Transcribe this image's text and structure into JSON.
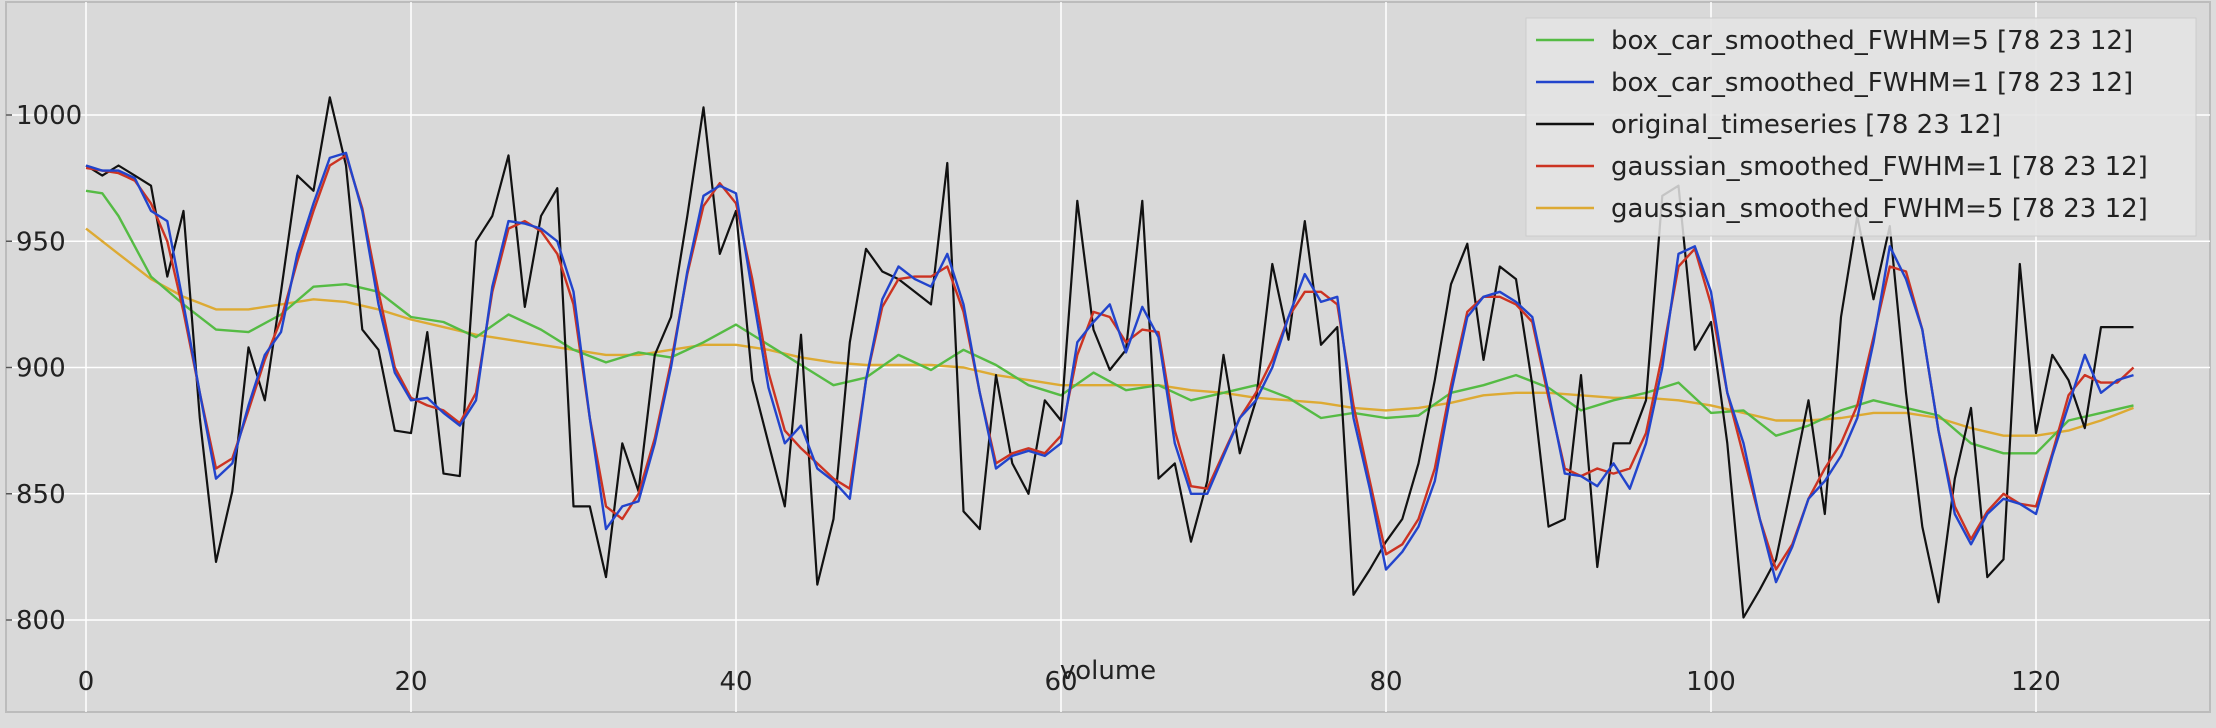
{
  "chart_data": {
    "type": "line",
    "title": "",
    "xlabel": "volume",
    "ylabel": "",
    "xlim": [
      -0.5,
      128.5
    ],
    "ylim": [
      780,
      1050
    ],
    "xticks": [
      0,
      20,
      40,
      60,
      80,
      100,
      120
    ],
    "yticks": [
      800,
      850,
      900,
      950,
      1000
    ],
    "xtick_labels": [
      "0",
      "20",
      "40",
      "60",
      "80",
      "100",
      "120"
    ],
    "ytick_labels": [
      "800",
      "850",
      "900",
      "950",
      "1000"
    ],
    "grid": true,
    "legend_position": "top-right",
    "background": "#d9d9d9",
    "series": [
      {
        "name": "box_car_smoothed_FWHM=5 [78 23 12]",
        "color": "#55bb44",
        "x": [
          0,
          1,
          2,
          4,
          6,
          8,
          10,
          12,
          14,
          16,
          18,
          20,
          22,
          24,
          26,
          28,
          30,
          32,
          34,
          36,
          38,
          40,
          42,
          44,
          46,
          48,
          50,
          52,
          54,
          56,
          58,
          60,
          62,
          64,
          66,
          68,
          70,
          72,
          74,
          76,
          78,
          80,
          82,
          84,
          86,
          88,
          90,
          92,
          94,
          96,
          98,
          100,
          102,
          104,
          106,
          108,
          110,
          112,
          114,
          116,
          118,
          120,
          122,
          124,
          126
        ],
        "y": [
          970,
          969,
          960,
          936,
          925,
          915,
          914,
          921,
          932,
          933,
          930,
          920,
          918,
          912,
          921,
          915,
          907,
          902,
          906,
          904,
          910,
          917,
          909,
          901,
          893,
          896,
          905,
          899,
          907,
          901,
          893,
          889,
          898,
          891,
          893,
          887,
          890,
          893,
          888,
          880,
          882,
          880,
          881,
          890,
          893,
          897,
          892,
          883,
          887,
          890,
          894,
          882,
          883,
          873,
          877,
          883,
          887,
          884,
          881,
          870,
          866,
          866,
          879,
          882,
          885
        ]
      },
      {
        "name": "box_car_smoothed_FWHM=1 [78 23 12]",
        "color": "#2244cc",
        "x": [
          0,
          1,
          2,
          3,
          4,
          5,
          6,
          7,
          8,
          9,
          10,
          11,
          12,
          13,
          14,
          15,
          16,
          17,
          18,
          19,
          20,
          21,
          22,
          23,
          24,
          25,
          26,
          27,
          28,
          29,
          30,
          31,
          32,
          33,
          34,
          35,
          36,
          37,
          38,
          39,
          40,
          41,
          42,
          43,
          44,
          45,
          46,
          47,
          48,
          49,
          50,
          51,
          52,
          53,
          54,
          55,
          56,
          57,
          58,
          59,
          60,
          61,
          62,
          63,
          64,
          65,
          66,
          67,
          68,
          69,
          70,
          71,
          72,
          73,
          74,
          75,
          76,
          77,
          78,
          79,
          80,
          81,
          82,
          83,
          84,
          85,
          86,
          87,
          88,
          89,
          90,
          91,
          92,
          93,
          94,
          95,
          96,
          97,
          98,
          99,
          100,
          101,
          102,
          103,
          104,
          105,
          106,
          107,
          108,
          109,
          110,
          111,
          112,
          113,
          114,
          115,
          116,
          117,
          118,
          119,
          120,
          121,
          122,
          123,
          124,
          125,
          126
        ],
        "y": [
          980,
          978,
          978,
          975,
          962,
          958,
          925,
          890,
          856,
          862,
          885,
          905,
          914,
          945,
          965,
          983,
          985,
          962,
          925,
          898,
          887,
          888,
          882,
          877,
          887,
          932,
          958,
          957,
          955,
          950,
          930,
          880,
          836,
          845,
          847,
          870,
          900,
          938,
          968,
          972,
          969,
          930,
          892,
          870,
          877,
          860,
          855,
          848,
          895,
          927,
          940,
          935,
          932,
          945,
          925,
          890,
          860,
          865,
          867,
          865,
          870,
          910,
          918,
          925,
          906,
          924,
          912,
          870,
          850,
          850,
          865,
          880,
          887,
          900,
          920,
          937,
          926,
          928,
          880,
          852,
          820,
          827,
          837,
          855,
          890,
          920,
          928,
          930,
          926,
          920,
          890,
          858,
          857,
          853,
          862,
          852,
          870,
          900,
          945,
          948,
          930,
          890,
          870,
          840,
          815,
          829,
          848,
          855,
          865,
          880,
          910,
          948,
          935,
          915,
          875,
          842,
          830,
          842,
          848,
          846,
          842,
          865,
          885,
          905,
          890,
          895,
          897
        ]
      },
      {
        "name": "original_timeseries [78 23 12]",
        "color": "#111111",
        "x": [
          0,
          1,
          2,
          3,
          4,
          5,
          6,
          7,
          8,
          9,
          10,
          11,
          12,
          13,
          14,
          15,
          16,
          17,
          18,
          19,
          20,
          21,
          22,
          23,
          24,
          25,
          26,
          27,
          28,
          29,
          30,
          31,
          32,
          33,
          34,
          35,
          36,
          37,
          38,
          39,
          40,
          41,
          42,
          43,
          44,
          45,
          46,
          47,
          48,
          49,
          50,
          51,
          52,
          53,
          54,
          55,
          56,
          57,
          58,
          59,
          60,
          61,
          62,
          63,
          64,
          65,
          66,
          67,
          68,
          69,
          70,
          71,
          72,
          73,
          74,
          75,
          76,
          77,
          78,
          79,
          80,
          81,
          82,
          83,
          84,
          85,
          86,
          87,
          88,
          89,
          90,
          91,
          92,
          93,
          94,
          95,
          96,
          97,
          98,
          99,
          100,
          101,
          102,
          103,
          104,
          105,
          106,
          107,
          108,
          109,
          110,
          111,
          112,
          113,
          114,
          115,
          116,
          117,
          118,
          119,
          120,
          121,
          122,
          123,
          124,
          125,
          126
        ],
        "y": [
          980,
          976,
          980,
          976,
          972,
          936,
          962,
          880,
          823,
          851,
          908,
          887,
          930,
          976,
          970,
          1007,
          980,
          915,
          907,
          875,
          874,
          914,
          858,
          857,
          950,
          960,
          984,
          924,
          960,
          971,
          845,
          845,
          817,
          870,
          851,
          905,
          920,
          960,
          1003,
          945,
          962,
          895,
          870,
          845,
          913,
          814,
          840,
          910,
          947,
          938,
          935,
          930,
          925,
          981,
          843,
          836,
          897,
          862,
          850,
          887,
          879,
          966,
          915,
          899,
          907,
          966,
          856,
          862,
          831,
          855,
          905,
          866,
          887,
          941,
          911,
          958,
          909,
          916,
          810,
          820,
          831,
          840,
          862,
          895,
          933,
          949,
          903,
          940,
          935,
          893,
          837,
          840,
          897,
          821,
          870,
          870,
          887,
          968,
          972,
          907,
          918,
          870,
          801,
          812,
          824,
          855,
          887,
          842,
          920,
          960,
          927,
          956,
          890,
          837,
          807,
          856,
          884,
          817,
          824,
          941,
          874,
          905,
          895,
          876,
          916,
          916,
          916
        ]
      },
      {
        "name": "gaussian_smoothed_FWHM=1 [78 23 12]",
        "color": "#cc3322",
        "x": [
          0,
          1,
          2,
          3,
          4,
          5,
          6,
          7,
          8,
          9,
          10,
          11,
          12,
          13,
          14,
          15,
          16,
          17,
          18,
          19,
          20,
          21,
          22,
          23,
          24,
          25,
          26,
          27,
          28,
          29,
          30,
          31,
          32,
          33,
          34,
          35,
          36,
          37,
          38,
          39,
          40,
          41,
          42,
          43,
          44,
          45,
          46,
          47,
          48,
          49,
          50,
          51,
          52,
          53,
          54,
          55,
          56,
          57,
          58,
          59,
          60,
          61,
          62,
          63,
          64,
          65,
          66,
          67,
          68,
          69,
          70,
          71,
          72,
          73,
          74,
          75,
          76,
          77,
          78,
          79,
          80,
          81,
          82,
          83,
          84,
          85,
          86,
          87,
          88,
          89,
          90,
          91,
          92,
          93,
          94,
          95,
          96,
          97,
          98,
          99,
          100,
          101,
          102,
          103,
          104,
          105,
          106,
          107,
          108,
          109,
          110,
          111,
          112,
          113,
          114,
          115,
          116,
          117,
          118,
          119,
          120,
          121,
          122,
          123,
          124,
          125,
          126
        ],
        "y": [
          979,
          978,
          977,
          974,
          965,
          950,
          922,
          890,
          860,
          864,
          883,
          903,
          919,
          942,
          962,
          980,
          984,
          963,
          930,
          900,
          888,
          885,
          883,
          878,
          890,
          930,
          955,
          958,
          954,
          945,
          925,
          880,
          845,
          840,
          850,
          872,
          902,
          937,
          964,
          973,
          965,
          935,
          898,
          875,
          868,
          862,
          856,
          852,
          895,
          924,
          935,
          936,
          936,
          940,
          922,
          890,
          862,
          866,
          868,
          866,
          873,
          905,
          922,
          920,
          910,
          915,
          914,
          875,
          853,
          852,
          866,
          880,
          890,
          903,
          920,
          930,
          930,
          925,
          885,
          855,
          826,
          830,
          840,
          860,
          893,
          922,
          928,
          928,
          925,
          918,
          888,
          860,
          857,
          860,
          858,
          860,
          874,
          905,
          940,
          947,
          925,
          890,
          865,
          840,
          820,
          830,
          848,
          860,
          870,
          885,
          912,
          940,
          938,
          915,
          875,
          845,
          832,
          843,
          850,
          846,
          845,
          866,
          889,
          897,
          894,
          894,
          900
        ]
      },
      {
        "name": "gaussian_smoothed_FWHM=5 [78 23 12]",
        "color": "#ddaa33",
        "x": [
          0,
          2,
          4,
          6,
          8,
          10,
          12,
          14,
          16,
          18,
          20,
          22,
          24,
          26,
          28,
          30,
          32,
          34,
          36,
          38,
          40,
          42,
          44,
          46,
          48,
          50,
          52,
          54,
          56,
          58,
          60,
          62,
          64,
          66,
          68,
          70,
          72,
          74,
          76,
          78,
          80,
          82,
          84,
          86,
          88,
          90,
          92,
          94,
          96,
          98,
          100,
          102,
          104,
          106,
          108,
          110,
          112,
          114,
          116,
          118,
          120,
          122,
          124,
          126
        ],
        "y": [
          955,
          945,
          935,
          928,
          923,
          923,
          925,
          927,
          926,
          923,
          919,
          916,
          913,
          911,
          909,
          907,
          905,
          905,
          907,
          909,
          909,
          907,
          904,
          902,
          901,
          901,
          901,
          900,
          897,
          895,
          893,
          893,
          893,
          893,
          891,
          890,
          888,
          887,
          886,
          884,
          883,
          884,
          886,
          889,
          890,
          890,
          889,
          888,
          888,
          887,
          885,
          882,
          879,
          879,
          880,
          882,
          882,
          880,
          876,
          873,
          873,
          875,
          879,
          884
        ]
      }
    ]
  }
}
